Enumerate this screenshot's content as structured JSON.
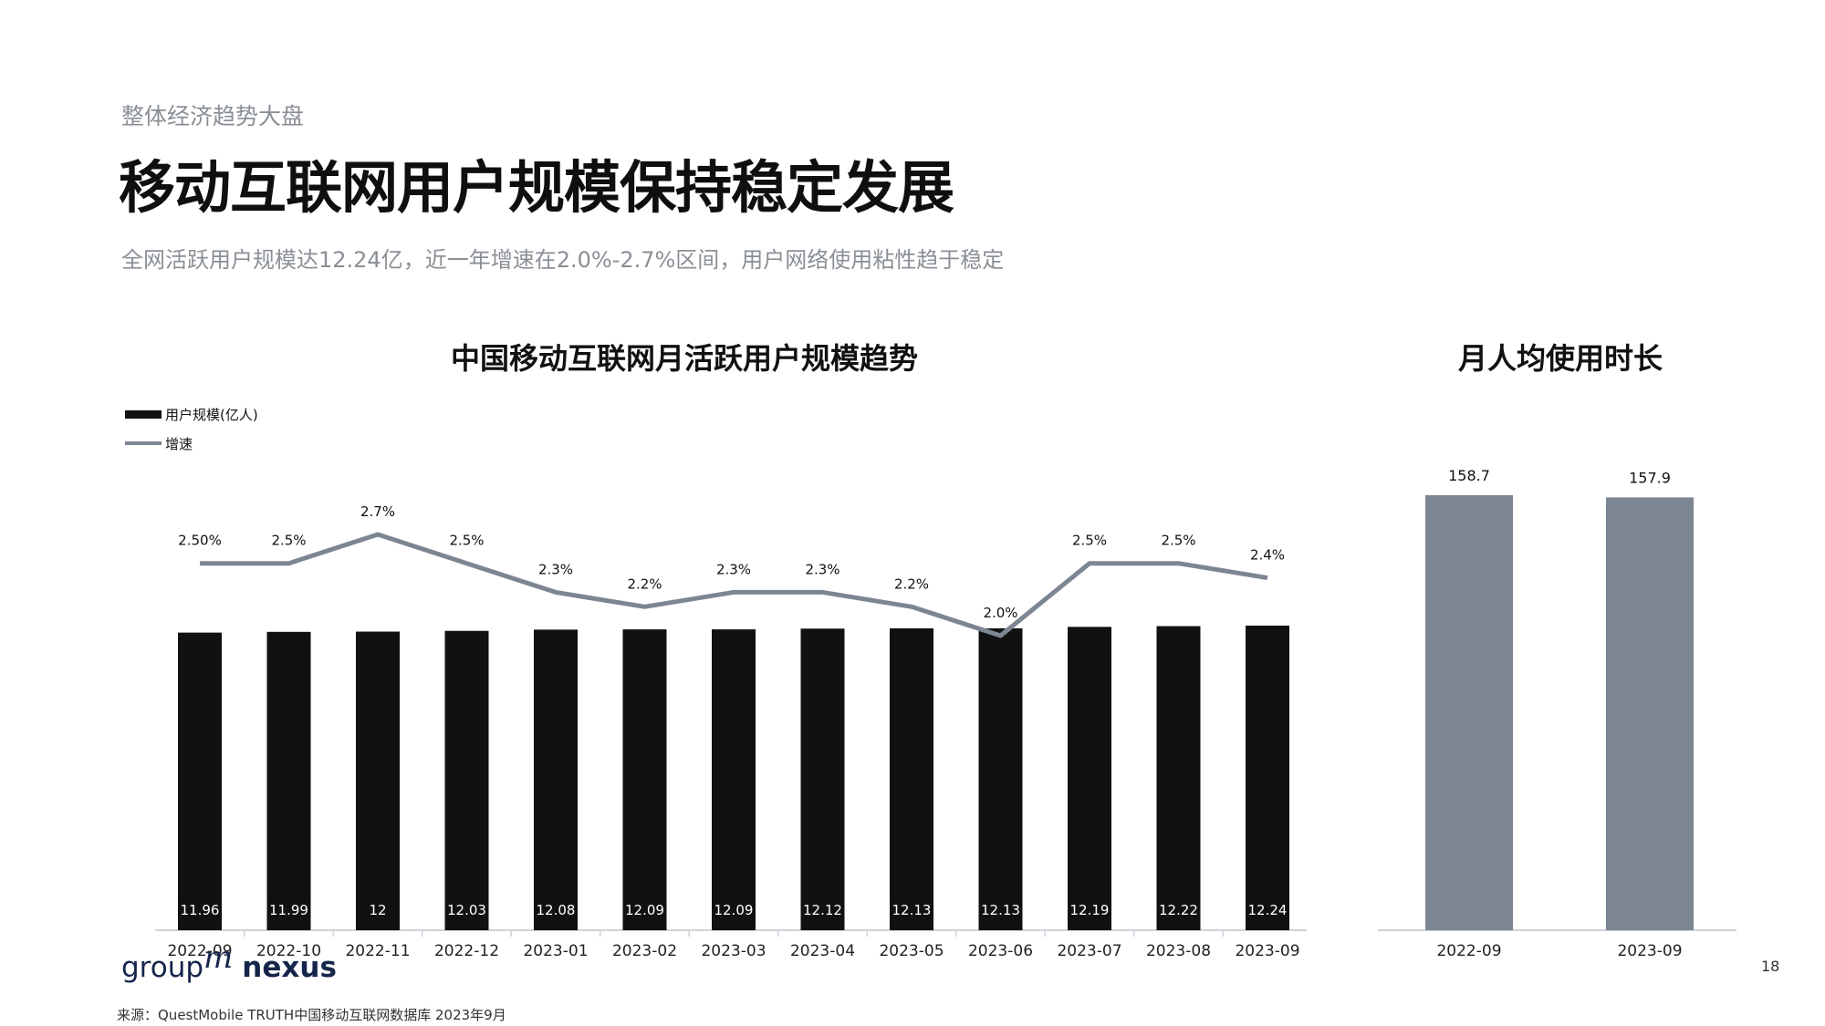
{
  "header": {
    "section_label": "整体经济趋势大盘",
    "title": "移动互联网用户规模保持稳定发展",
    "subtitle": "全网活跃用户规模达12.24亿，近一年增速在2.0%-2.7%区间，用户网络使用粘性趋于稳定"
  },
  "chart_data": [
    {
      "type": "bar+line",
      "title": "中国移动互联网月活跃用户规模趋势",
      "categories": [
        "2022-09",
        "2022-10",
        "2022-11",
        "2022-12",
        "2023-01",
        "2023-02",
        "2023-03",
        "2023-04",
        "2023-05",
        "2023-06",
        "2023-07",
        "2023-08",
        "2023-09"
      ],
      "series": [
        {
          "name": "用户规模(亿人)",
          "type": "bar",
          "values": [
            11.96,
            11.99,
            12,
            12.03,
            12.08,
            12.09,
            12.09,
            12.12,
            12.13,
            12.13,
            12.19,
            12.22,
            12.24
          ],
          "labels": [
            "11.96",
            "11.99",
            "12",
            "12.03",
            "12.08",
            "12.09",
            "12.09",
            "12.12",
            "12.13",
            "12.13",
            "12.19",
            "12.22",
            "12.24"
          ],
          "color": "#111111"
        },
        {
          "name": "增速",
          "type": "line",
          "values": [
            2.5,
            2.5,
            2.7,
            2.5,
            2.3,
            2.2,
            2.3,
            2.3,
            2.2,
            2.0,
            2.5,
            2.5,
            2.4
          ],
          "labels": [
            "2.50%",
            "2.5%",
            "2.7%",
            "2.5%",
            "2.3%",
            "2.2%",
            "2.3%",
            "2.3%",
            "2.2%",
            "2.0%",
            "2.5%",
            "2.5%",
            "2.4%"
          ],
          "color": "#7c8692"
        }
      ],
      "legend_position": "top-left",
      "grid": false
    },
    {
      "type": "bar",
      "title": "月人均使用时长",
      "categories": [
        "2022-09",
        "2023-09"
      ],
      "values": [
        158.7,
        157.9
      ],
      "labels": [
        "158.7",
        "157.9"
      ],
      "color": "#7c8692",
      "grid": false
    }
  ],
  "footer": {
    "logo_text": "group",
    "logo_m": "m",
    "logo_nexus": "nexus",
    "source": "来源：QuestMobile  TRUTH中国移动互联网数据库 2023年9月",
    "page_number": "18"
  }
}
